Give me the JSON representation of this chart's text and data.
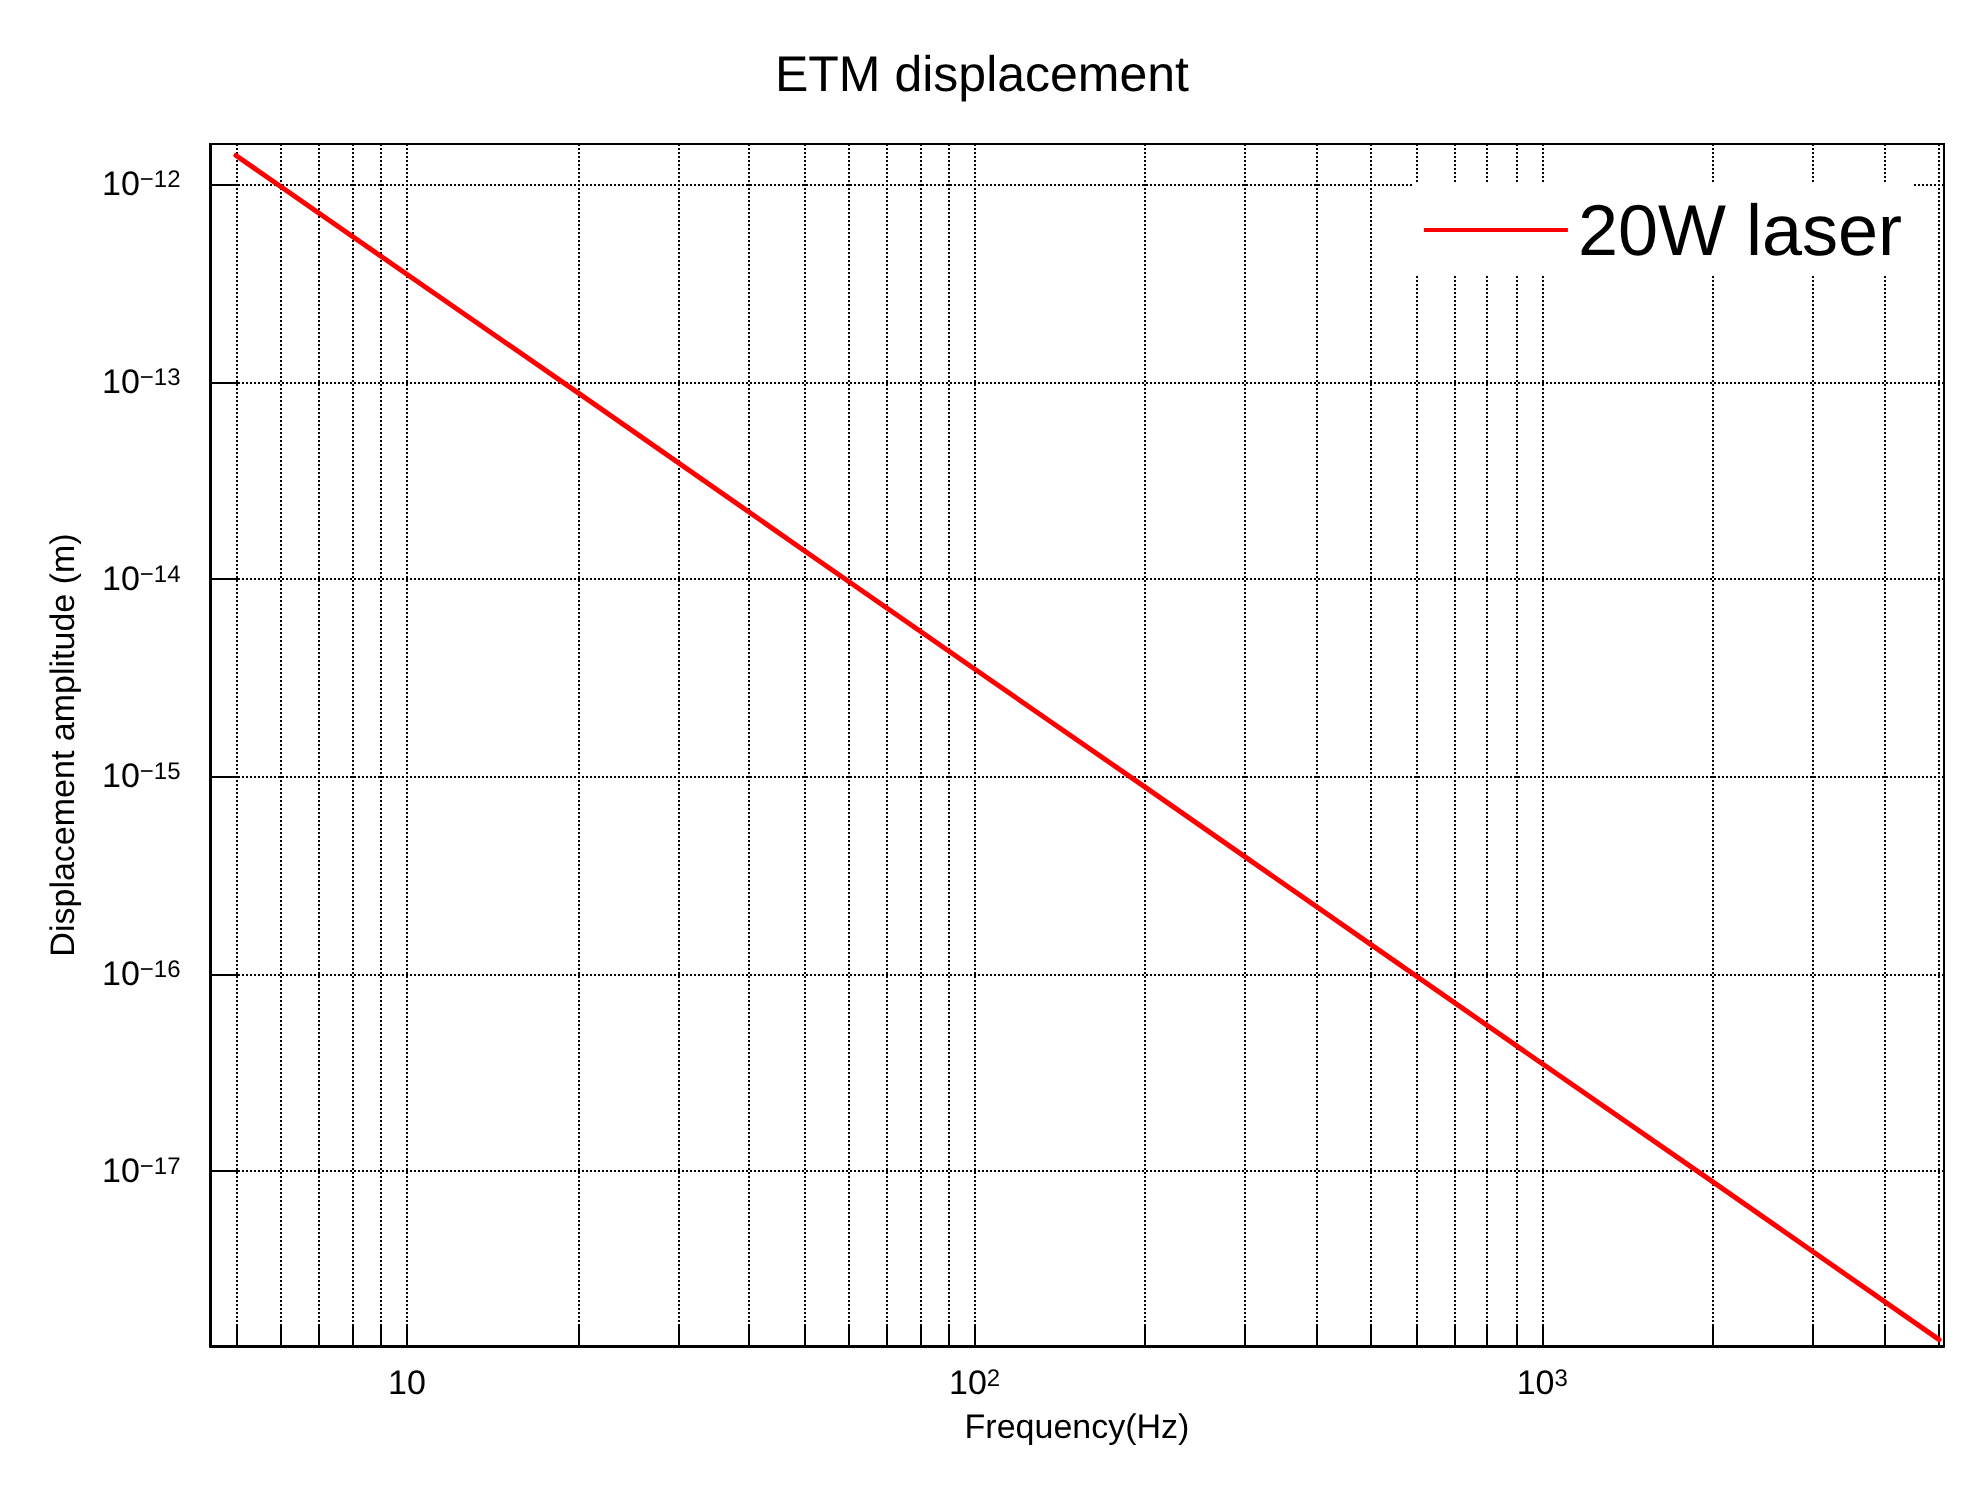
{
  "chart_data": {
    "type": "line",
    "title": "ETM displacement",
    "xlabel": "Frequency(Hz)",
    "ylabel": "Displacement amplitude (m)",
    "x": [
      5,
      10,
      20,
      50,
      100,
      200,
      500,
      1000,
      2000,
      5000
    ],
    "series": [
      {
        "name": "20W laser",
        "color": "#ff0000",
        "values": [
          1.4e-12,
          3.5e-13,
          8.8e-14,
          1.4e-14,
          3.5e-15,
          8.8e-16,
          1.4e-16,
          3.5e-17,
          8.8e-18,
          1.4e-18
        ]
      }
    ],
    "log": "xy",
    "xlim": [
      4.5,
      5100
    ],
    "ylim": [
      1.3e-18,
      1.6e-12
    ],
    "xticks": [
      {
        "value": 5,
        "label": null
      },
      {
        "value": 6,
        "label": null
      },
      {
        "value": 7,
        "label": null
      },
      {
        "value": 8,
        "label": null
      },
      {
        "value": 9,
        "label": null
      },
      {
        "value": 10,
        "label": "10"
      },
      {
        "value": 20,
        "label": null
      },
      {
        "value": 30,
        "label": null
      },
      {
        "value": 40,
        "label": null
      },
      {
        "value": 50,
        "label": null
      },
      {
        "value": 60,
        "label": null
      },
      {
        "value": 70,
        "label": null
      },
      {
        "value": 80,
        "label": null
      },
      {
        "value": 90,
        "label": null
      },
      {
        "value": 100,
        "label": "10$^{2}$"
      },
      {
        "value": 200,
        "label": null
      },
      {
        "value": 300,
        "label": null
      },
      {
        "value": 400,
        "label": null
      },
      {
        "value": 500,
        "label": null
      },
      {
        "value": 600,
        "label": null
      },
      {
        "value": 700,
        "label": null
      },
      {
        "value": 800,
        "label": null
      },
      {
        "value": 900,
        "label": null
      },
      {
        "value": 1000,
        "label": "10$^{3}$"
      },
      {
        "value": 2000,
        "label": null
      },
      {
        "value": 3000,
        "label": null
      },
      {
        "value": 4000,
        "label": null
      },
      {
        "value": 5000,
        "label": null
      }
    ],
    "yticks": [
      {
        "value": 1e-17,
        "label": "10$^{−17}$"
      },
      {
        "value": 1e-16,
        "label": "10$^{−16}$"
      },
      {
        "value": 1e-15,
        "label": "10$^{−15}$"
      },
      {
        "value": 1e-14,
        "label": "10$^{−14}$"
      },
      {
        "value": 1e-13,
        "label": "10$^{−13}$"
      },
      {
        "value": 1e-12,
        "label": "10$^{−12}$"
      }
    ],
    "grid": true,
    "legend": "top right",
    "marker": "none",
    "line_style": "solid"
  }
}
